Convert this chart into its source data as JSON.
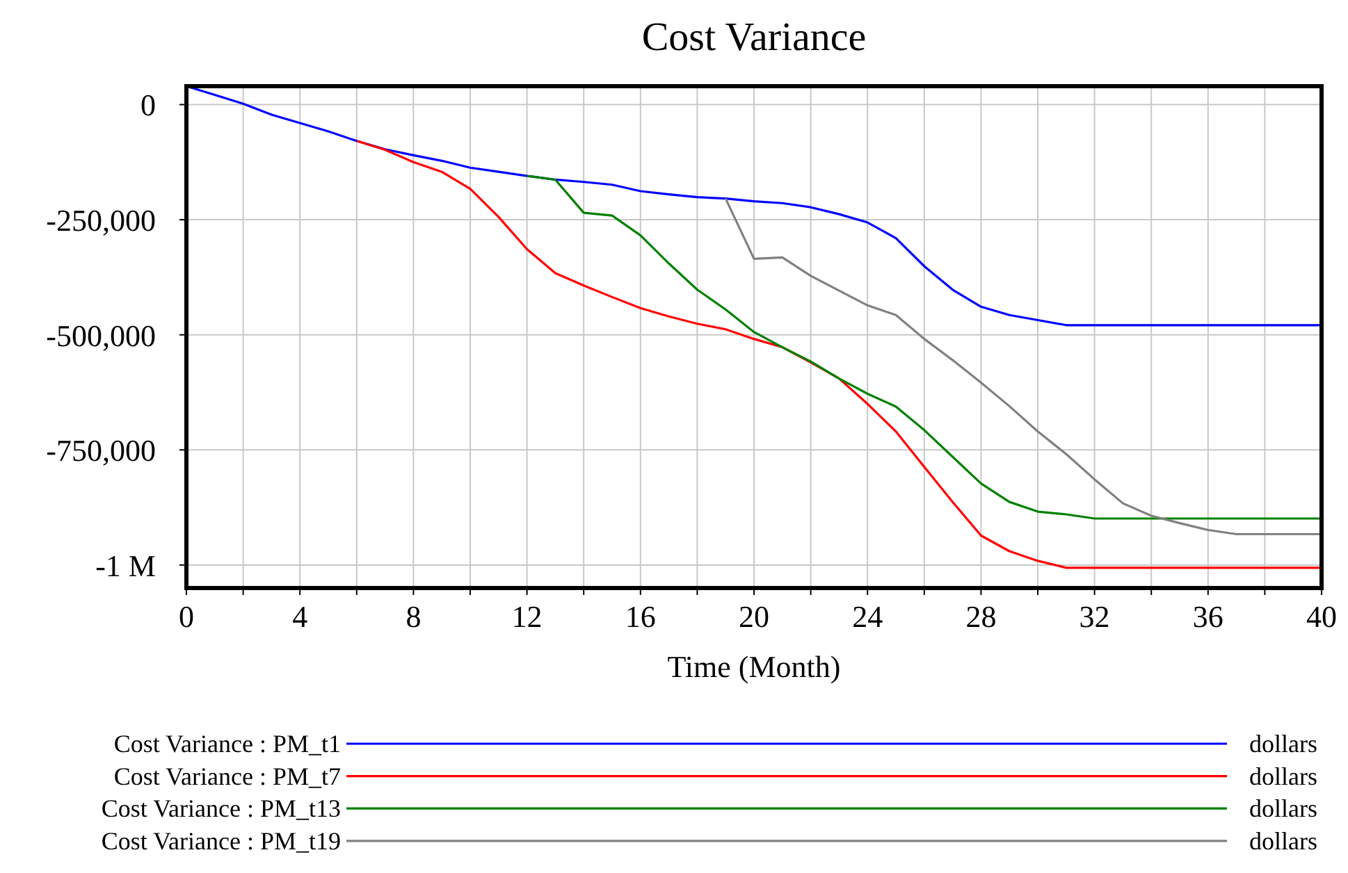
{
  "chart_data": {
    "type": "line",
    "title": "Cost Variance",
    "xlabel": "Time (Month)",
    "x": [
      0,
      1,
      2,
      3,
      4,
      5,
      6,
      7,
      8,
      9,
      10,
      11,
      12,
      13,
      14,
      15,
      16,
      17,
      18,
      19,
      20,
      21,
      22,
      23,
      24,
      25,
      26,
      27,
      28,
      29,
      30,
      31,
      32,
      33,
      34,
      35,
      36,
      37,
      38,
      39,
      40
    ],
    "xlim": [
      0,
      40
    ],
    "xticks": [
      0,
      {
        "value": 2,
        "label": null
      },
      4,
      {
        "value": 6,
        "label": null
      },
      8,
      {
        "value": 10,
        "label": null
      },
      12,
      {
        "value": 14,
        "label": null
      },
      16,
      {
        "value": 18,
        "label": null
      },
      20,
      {
        "value": 22,
        "label": null
      },
      24,
      {
        "value": 26,
        "label": null
      },
      28,
      {
        "value": 30,
        "label": null
      },
      32,
      {
        "value": 34,
        "label": null
      },
      36,
      {
        "value": 38,
        "label": null
      },
      40
    ],
    "ylim": [
      -1050000,
      40000
    ],
    "yticks": [
      0,
      {
        "value": -250000,
        "label": "-250,000"
      },
      {
        "value": -500000,
        "label": "-500,000"
      },
      {
        "value": -750000,
        "label": "-750,000"
      },
      {
        "value": -1000000,
        "label": "-1 M"
      }
    ],
    "grid": true,
    "legend": "bottom",
    "line_style": "solid",
    "marker": "none",
    "series": [
      {
        "name": "Cost Variance : PM_t1",
        "color": "#0000ff",
        "values": [
          40000,
          21000,
          2000,
          -22000,
          -40000,
          -58000,
          -79000,
          -97000,
          -110000,
          -122000,
          -137000,
          -146000,
          -155000,
          -163000,
          -168000,
          -174000,
          -188000,
          -195000,
          -201000,
          -204000,
          -210000,
          -214000,
          -223000,
          -238000,
          -256000,
          -290000,
          -351000,
          -402000,
          -439000,
          -457000,
          -468000,
          -479000,
          -479000,
          -479000,
          -479000,
          -479000,
          -479000,
          -479000,
          -479000,
          -479000,
          -479000
        ]
      },
      {
        "name": "Cost Variance : PM_t7",
        "color": "#ff0000",
        "values": [
          null,
          null,
          null,
          null,
          null,
          null,
          -79000,
          -98000,
          -125000,
          -146000,
          -183000,
          -244000,
          -314000,
          -366000,
          -393000,
          -418000,
          -442000,
          -460000,
          -476000,
          -488000,
          -509000,
          -527000,
          -560000,
          -595000,
          -650000,
          -710000,
          -787000,
          -863000,
          -936000,
          -970000,
          -991000,
          -1006000,
          -1006000,
          -1006000,
          -1006000,
          -1006000,
          -1006000,
          -1006000,
          -1006000,
          -1006000,
          -1006000
        ]
      },
      {
        "name": "Cost Variance : PM_t13",
        "color": "#008000",
        "values": [
          null,
          null,
          null,
          null,
          null,
          null,
          null,
          null,
          null,
          null,
          null,
          null,
          -155000,
          -163000,
          -235000,
          -241000,
          -284000,
          -345000,
          -402000,
          -445000,
          -494000,
          -527000,
          -558000,
          -595000,
          -628000,
          -656000,
          -707000,
          -765000,
          -823000,
          -863000,
          -884000,
          -890000,
          -899000,
          -899000,
          -899000,
          -899000,
          -899000,
          -899000,
          -899000,
          -899000,
          -899000
        ]
      },
      {
        "name": "Cost Variance : PM_t19",
        "color": "#808080",
        "values": [
          null,
          null,
          null,
          null,
          null,
          null,
          null,
          null,
          null,
          null,
          null,
          null,
          null,
          null,
          null,
          null,
          null,
          null,
          null,
          -204000,
          -335000,
          -332000,
          -372000,
          -404000,
          -436000,
          -457000,
          -509000,
          -555000,
          -604000,
          -655000,
          -710000,
          -759000,
          -814000,
          -866000,
          -893000,
          -909000,
          -924000,
          -933000,
          -933000,
          -933000,
          -933000
        ]
      }
    ],
    "annotations": [
      "dollars",
      "dollars",
      "dollars",
      "dollars"
    ]
  }
}
